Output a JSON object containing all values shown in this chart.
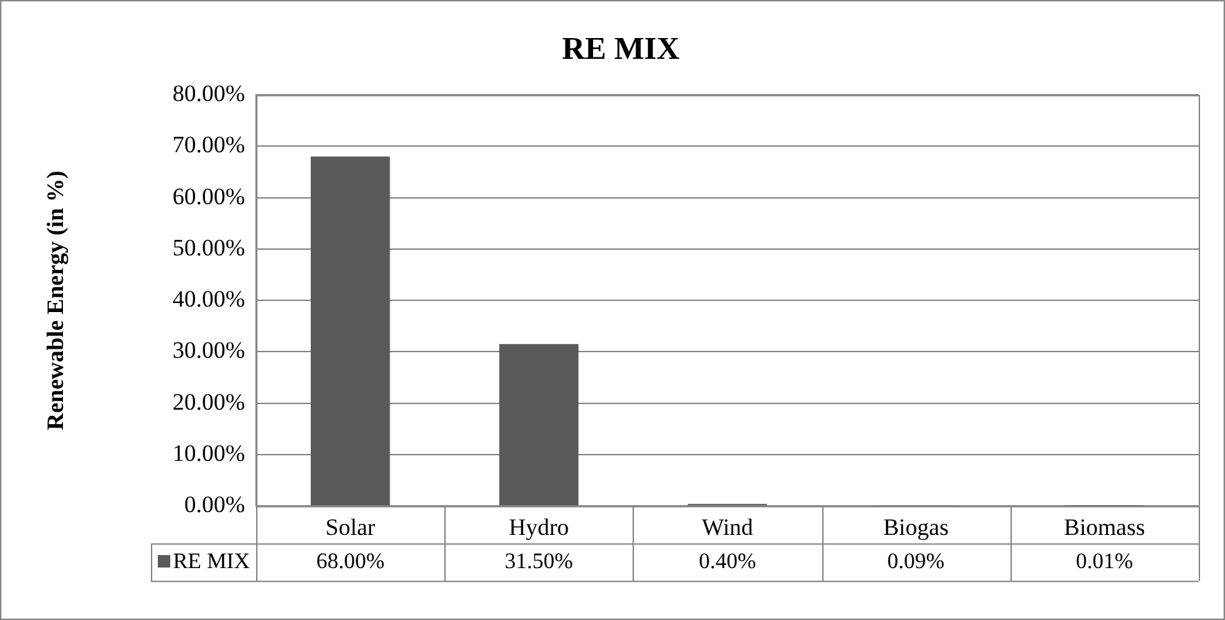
{
  "chart_data": {
    "type": "bar",
    "title": "RE MIX",
    "ylabel": "Renewable Energy (in %)",
    "categories": [
      "Solar",
      "Hydro",
      "Wind",
      "Biogas",
      "Biomass"
    ],
    "series": [
      {
        "name": "RE MIX",
        "color": "#595959",
        "values": [
          68,
          31.5,
          0.4,
          0.09,
          0.01
        ],
        "value_labels": [
          "68.00%",
          "31.50%",
          "0.40%",
          "0.09%",
          "0.01%"
        ]
      }
    ],
    "ylim": [
      0,
      80
    ],
    "yticks": [
      {
        "value": 0,
        "label": "0.00%"
      },
      {
        "value": 10,
        "label": "10.00%"
      },
      {
        "value": 20,
        "label": "20.00%"
      },
      {
        "value": 30,
        "label": "30.00%"
      },
      {
        "value": 40,
        "label": "40.00%"
      },
      {
        "value": 50,
        "label": "50.00%"
      },
      {
        "value": 60,
        "label": "60.00%"
      },
      {
        "value": 70,
        "label": "70.00%"
      },
      {
        "value": 80,
        "label": "80.00%"
      }
    ],
    "grid": "y",
    "legend": "bottom"
  }
}
